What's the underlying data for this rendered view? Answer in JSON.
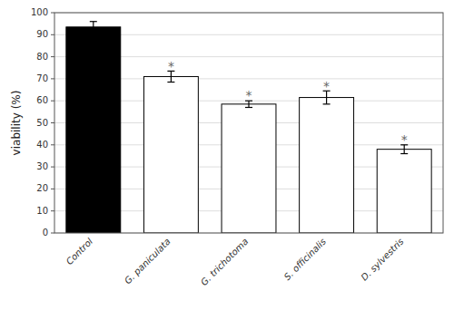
{
  "chart_data": {
    "type": "bar",
    "categories": [
      "Control",
      "G. paniculata",
      "G. trichotoma",
      "S. officinalis",
      "D. sylvestris"
    ],
    "values": [
      93.5,
      71.0,
      58.5,
      61.5,
      38.0
    ],
    "errors": [
      2.5,
      2.5,
      1.5,
      3.0,
      2.0
    ],
    "colors": [
      "#000000",
      "#ffffff",
      "#ffffff",
      "#ffffff",
      "#ffffff"
    ],
    "y_label": "viability (%)",
    "annotations": [
      {
        "text": "*",
        "category": "G. paniculata",
        "y": 76
      },
      {
        "text": "*",
        "category": "G. trichotoma",
        "y": 63
      },
      {
        "text": "*",
        "category": "S. officinalis",
        "y": 67
      },
      {
        "text": "*",
        "category": "D. sylvestris",
        "y": 43
      }
    ],
    "ylim": [
      0,
      100
    ],
    "yticks": [
      0,
      10,
      20,
      30,
      40,
      50,
      60,
      70,
      80,
      90,
      100
    ],
    "grid": true
  }
}
